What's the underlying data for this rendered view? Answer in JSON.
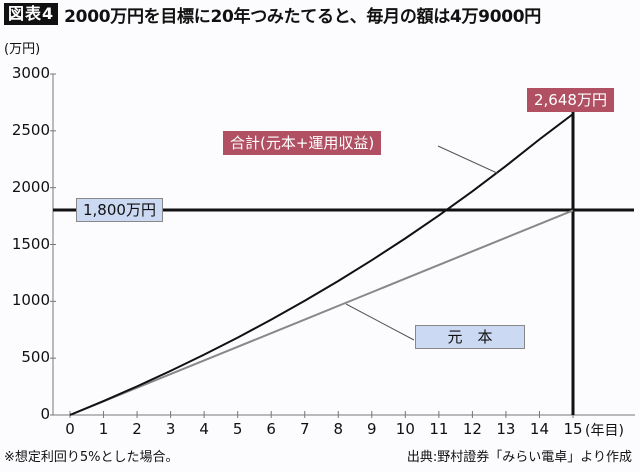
{
  "header": {
    "figure_tag": "図表4",
    "title": "2000万円を目標に20年つみたてると、毎月の額は4万9000円"
  },
  "axes": {
    "y_unit": "(万円)",
    "x_unit": "(年目)",
    "y_ticks": [
      "3000",
      "2500",
      "2000",
      "1500",
      "1000",
      "500",
      "0"
    ],
    "x_ticks": [
      "0",
      "1",
      "2",
      "3",
      "4",
      "5",
      "6",
      "7",
      "8",
      "9",
      "10",
      "11",
      "12",
      "13",
      "14",
      "15"
    ]
  },
  "annotations": {
    "target_label": "1,800万円",
    "final_total_label": "2,648万円",
    "total_series_label": "合計(元本+運用収益)",
    "principal_series_label": "元　本"
  },
  "footer": {
    "note": "※想定利回り5%とした場合。",
    "source": "出典:野村證券「みらい電卓」より作成"
  },
  "colors": {
    "total_line": "#111111",
    "principal_line": "#888888",
    "red_label": "#b05062",
    "blue_label": "#cbd9f2"
  },
  "chart_data": {
    "type": "line",
    "title": "2000万円を目標に20年つみたてると、毎月の額は4万9000円",
    "xlabel": "(年目)",
    "ylabel": "(万円)",
    "x": [
      0,
      1,
      2,
      3,
      4,
      5,
      6,
      7,
      8,
      9,
      10,
      11,
      12,
      13,
      14,
      15
    ],
    "series": [
      {
        "name": "合計(元本+運用収益)",
        "values": [
          0,
          123,
          252,
          388,
          531,
          681,
          839,
          1005,
          1179,
          1362,
          1554,
          1756,
          1968,
          2191,
          2425,
          2648
        ]
      },
      {
        "name": "元本",
        "values": [
          0,
          120,
          240,
          360,
          480,
          600,
          720,
          840,
          960,
          1080,
          1200,
          1320,
          1440,
          1560,
          1680,
          1800
        ]
      }
    ],
    "reference_lines": [
      {
        "type": "horizontal",
        "y": 1800,
        "label": "1,800万円"
      },
      {
        "type": "vertical",
        "x": 15
      }
    ],
    "annotations": [
      {
        "x": 15,
        "y": 2648,
        "text": "2,648万円"
      }
    ],
    "xlim": [
      0,
      15
    ],
    "ylim": [
      0,
      3000
    ],
    "grid": false,
    "legend": "inline labels"
  }
}
